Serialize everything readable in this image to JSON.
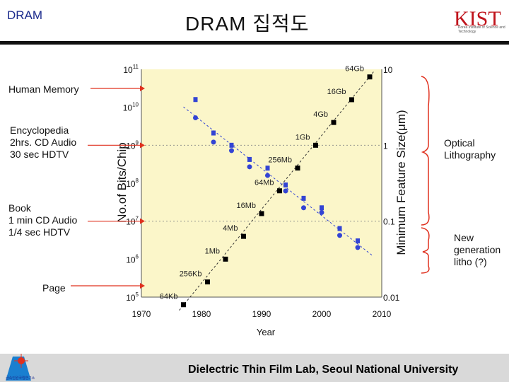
{
  "header": {
    "tag": "DRAM",
    "title": "DRAM 집적도",
    "logo_letters": "KIST",
    "logo_org": "Korea Institute of Science and Technology"
  },
  "left_labels": [
    {
      "text": "Human Memory"
    },
    {
      "text": "Encyclopedia\n2hrs. CD Audio\n30 sec HDTV"
    },
    {
      "text": "Book\n1 min CD Audio\n1/4 sec HDTV"
    },
    {
      "text": "Page"
    }
  ],
  "right_labels": [
    {
      "text": "Optical\nLithography"
    },
    {
      "text": "New\ngeneration\nlitho (?)"
    }
  ],
  "footer": {
    "text": "Dielectric  Thin Film Lab, Seoul National University",
    "logo_text": "금속인원국립연구소"
  },
  "colors": {
    "plot_bg": "#fbf6c9",
    "bits_marker": "#000000",
    "feature_marker": "#3344d4",
    "arrow": "#e0301e",
    "brace": "#e0301e",
    "header_tag": "#1a2a8c"
  },
  "chart_data": {
    "type": "scatter",
    "xlabel": "Year",
    "ylabel_left": "No.of Bits/Chip",
    "ylabel_right": "Minimum Feature Size(μm)",
    "x_ticks": [
      1970,
      1980,
      1990,
      2000,
      2010
    ],
    "xlim": [
      1970,
      2010
    ],
    "left_axis": {
      "scale": "log10",
      "ylim_exp": [
        5,
        11
      ],
      "tick_exponents": [
        5,
        6,
        7,
        8,
        9,
        10,
        11
      ]
    },
    "right_axis": {
      "scale": "log10",
      "ylim": [
        0.01,
        10
      ],
      "tick_labels": [
        "10",
        "1",
        "0.1",
        "0.01"
      ]
    },
    "grid": "dotted",
    "series": [
      {
        "name": "bits",
        "axis": "left",
        "points": [
          {
            "x": 1977,
            "y_exp": 4.8,
            "label": "64Kb"
          },
          {
            "x": 1981,
            "y_exp": 5.4,
            "label": "256Kb"
          },
          {
            "x": 1984,
            "y_exp": 6.0,
            "label": "1Mb"
          },
          {
            "x": 1987,
            "y_exp": 6.6,
            "label": "4Mb"
          },
          {
            "x": 1990,
            "y_exp": 7.2,
            "label": "16Mb"
          },
          {
            "x": 1993,
            "y_exp": 7.8,
            "label": "64Mb"
          },
          {
            "x": 1996,
            "y_exp": 8.4,
            "label": "256Mb"
          },
          {
            "x": 1999,
            "y_exp": 9.0,
            "label": "1Gb"
          },
          {
            "x": 2002,
            "y_exp": 9.6,
            "label": "4Gb"
          },
          {
            "x": 2005,
            "y_exp": 10.2,
            "label": "16Gb"
          },
          {
            "x": 2008,
            "y_exp": 10.8,
            "label": "64Gb"
          }
        ]
      },
      {
        "name": "feature_size",
        "axis": "right",
        "points": [
          {
            "x": 1979,
            "y": 4.0
          },
          {
            "x": 1979,
            "y": 2.3
          },
          {
            "x": 1982,
            "y": 1.45
          },
          {
            "x": 1982,
            "y": 1.1
          },
          {
            "x": 1985,
            "y": 1.0
          },
          {
            "x": 1985,
            "y": 0.85
          },
          {
            "x": 1988,
            "y": 0.65
          },
          {
            "x": 1988,
            "y": 0.52
          },
          {
            "x": 1991,
            "y": 0.5
          },
          {
            "x": 1991,
            "y": 0.4
          },
          {
            "x": 1994,
            "y": 0.3
          },
          {
            "x": 1994,
            "y": 0.25
          },
          {
            "x": 1997,
            "y": 0.2
          },
          {
            "x": 1997,
            "y": 0.15
          },
          {
            "x": 2000,
            "y": 0.15
          },
          {
            "x": 2000,
            "y": 0.13
          },
          {
            "x": 2003,
            "y": 0.08
          },
          {
            "x": 2003,
            "y": 0.065
          },
          {
            "x": 2006,
            "y": 0.055
          },
          {
            "x": 2006,
            "y": 0.045
          }
        ]
      }
    ]
  }
}
